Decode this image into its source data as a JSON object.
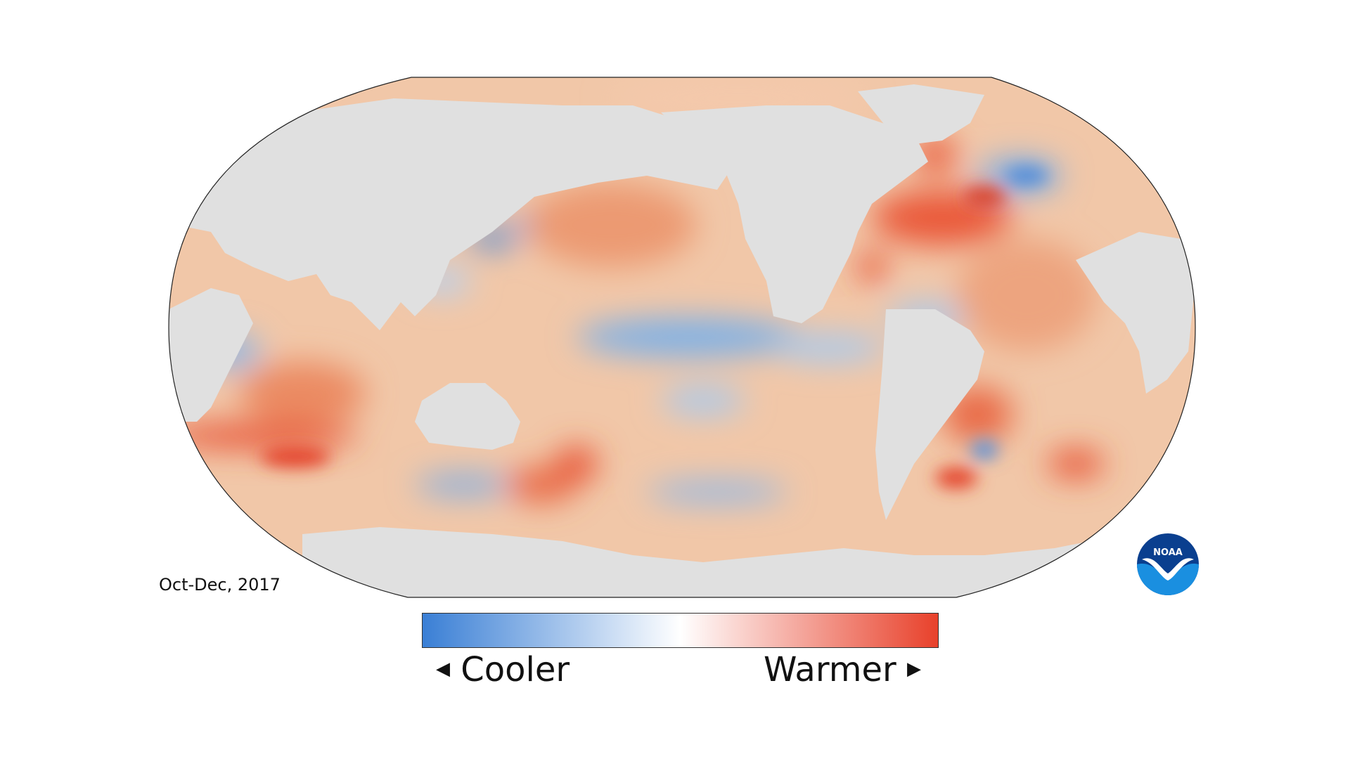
{
  "map": {
    "period": "Oct-Dec, 2017",
    "legend": {
      "cooler_label": "Cooler",
      "warmer_label": "Warmer",
      "cool_color": "#3a7fd5",
      "neutral_color": "#ffffff",
      "warm_color": "#e8412b"
    },
    "land_color": "#e0e0e0",
    "logo_text": "NOAA"
  }
}
